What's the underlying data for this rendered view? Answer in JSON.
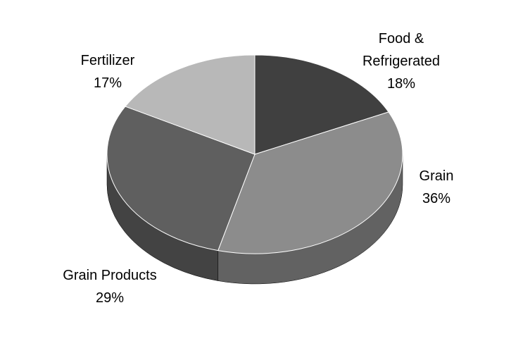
{
  "chart_data": {
    "type": "pie",
    "categories": [
      "Food & Refrigerated",
      "Grain",
      "Grain Products",
      "Fertilizer"
    ],
    "values": [
      18,
      36,
      29,
      17
    ],
    "value_labels": [
      "18%",
      "36%",
      "29%",
      "17%"
    ],
    "colors": [
      "#404040",
      "#8c8c8c",
      "#5f5f5f",
      "#b8b8b8"
    ]
  }
}
